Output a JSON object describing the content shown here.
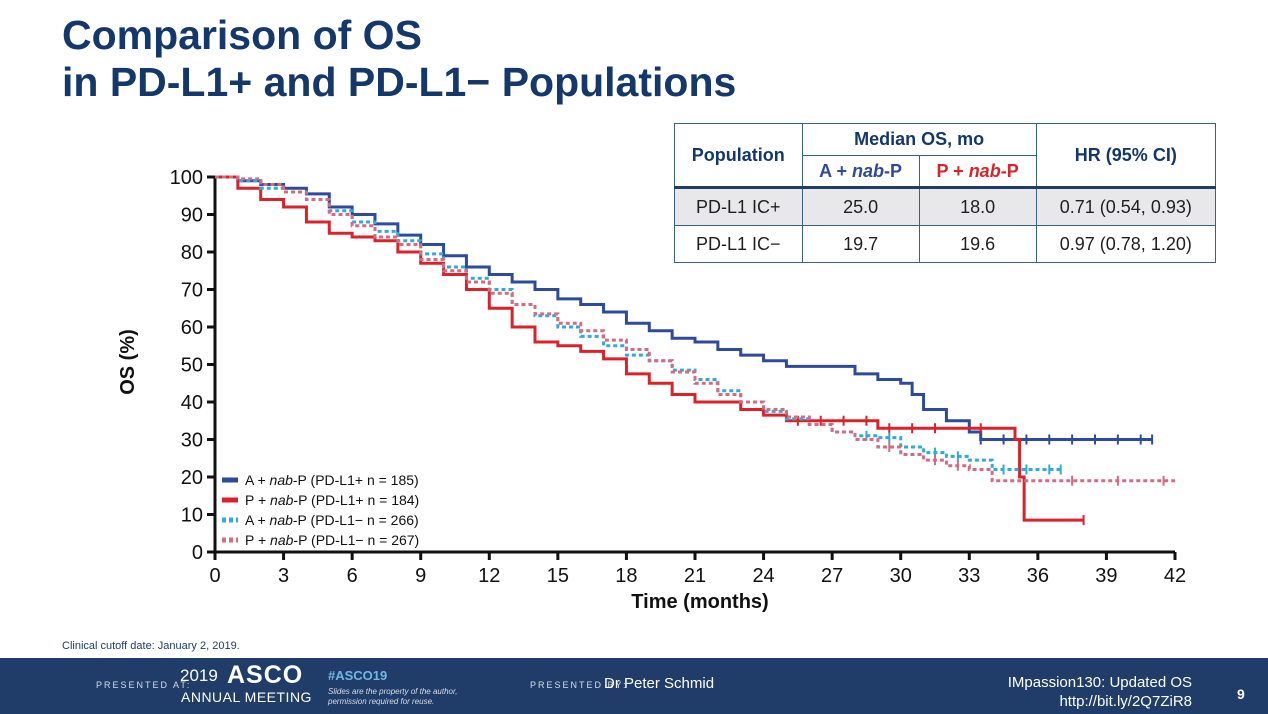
{
  "slide": {
    "title_line1": "Comparison of OS",
    "title_line2": "in PD-L1+ and PD-L1− Populations",
    "cutoff_note": "Clinical cutoff date: January 2, 2019."
  },
  "table": {
    "population_header": "Population",
    "median_header": "Median OS, mo",
    "col_a": "A + nab-P",
    "col_p": "P + nab-P",
    "hr_header": "HR (95% CI)",
    "rows": [
      {
        "population": "PD-L1 IC+",
        "median_a": "25.0",
        "median_p": "18.0",
        "hr": "0.71 (0.54, 0.93)"
      },
      {
        "population": "PD-L1 IC−",
        "median_a": "19.7",
        "median_p": "19.6",
        "hr": "0.97 (0.78, 1.20)"
      }
    ]
  },
  "footer": {
    "presented_at": "PRESENTED AT:",
    "meeting_year": "2019",
    "meeting_name": "ASCO",
    "meeting_sub": "ANNUAL MEETING",
    "hashtag": "#ASCO19",
    "rights_note": "Slides are the property of the author, permission required for reuse.",
    "presented_by": "PRESENTED BY:",
    "presenter": "Dr Peter Schmid",
    "study": "IMpassion130: Updated OS",
    "url": "http://bit.ly/2Q7ZiR8",
    "page_number": "9"
  },
  "chart_data": {
    "type": "line",
    "subtype": "kaplan-meier",
    "title": "",
    "xlabel": "Time (months)",
    "ylabel": "OS (%)",
    "xlim": [
      0,
      42
    ],
    "ylim": [
      0,
      100
    ],
    "xticks": [
      0,
      3,
      6,
      9,
      12,
      15,
      18,
      21,
      24,
      27,
      30,
      33,
      36,
      39,
      42
    ],
    "yticks": [
      0,
      10,
      20,
      30,
      40,
      50,
      60,
      70,
      80,
      90,
      100
    ],
    "legend_position": "bottom-left",
    "series": [
      {
        "name": "A + nab-P (PD-L1+ n = 185)",
        "color": "#2e4a9a",
        "dashed": false,
        "points": [
          [
            0,
            100
          ],
          [
            1,
            99
          ],
          [
            2,
            98
          ],
          [
            3,
            97
          ],
          [
            4,
            95.5
          ],
          [
            5,
            92
          ],
          [
            6,
            90
          ],
          [
            7,
            87.5
          ],
          [
            8,
            84.5
          ],
          [
            9,
            82
          ],
          [
            10,
            79
          ],
          [
            11,
            76
          ],
          [
            12,
            74
          ],
          [
            13,
            72
          ],
          [
            14,
            70
          ],
          [
            15,
            67.5
          ],
          [
            16,
            66
          ],
          [
            17,
            64
          ],
          [
            18,
            61
          ],
          [
            19,
            59
          ],
          [
            20,
            57
          ],
          [
            21,
            56
          ],
          [
            22,
            54
          ],
          [
            23,
            52.5
          ],
          [
            24,
            51
          ],
          [
            25,
            49.5
          ],
          [
            26,
            49.5
          ],
          [
            27,
            49.5
          ],
          [
            28,
            47.5
          ],
          [
            29,
            46
          ],
          [
            30,
            45
          ],
          [
            30.5,
            42
          ],
          [
            31,
            38
          ],
          [
            32,
            35
          ],
          [
            33,
            32
          ],
          [
            33.5,
            30
          ],
          [
            35,
            30
          ],
          [
            37,
            30
          ],
          [
            39,
            30
          ],
          [
            41,
            30
          ]
        ],
        "censor_times": [
          33.5,
          34.5,
          35.5,
          36.5,
          37.5,
          38.5,
          39.5,
          40.5,
          41
        ]
      },
      {
        "name": "P + nab-P (PD-L1+ n = 184)",
        "color": "#d9222a",
        "dashed": false,
        "points": [
          [
            0,
            100
          ],
          [
            1,
            97
          ],
          [
            2,
            94
          ],
          [
            3,
            92
          ],
          [
            4,
            88
          ],
          [
            5,
            85
          ],
          [
            6,
            84
          ],
          [
            7,
            83
          ],
          [
            8,
            80
          ],
          [
            9,
            77
          ],
          [
            10,
            74
          ],
          [
            11,
            70
          ],
          [
            12,
            65
          ],
          [
            13,
            60
          ],
          [
            14,
            56
          ],
          [
            15,
            55
          ],
          [
            16,
            53.5
          ],
          [
            17,
            51.5
          ],
          [
            18,
            47.5
          ],
          [
            19,
            45
          ],
          [
            20,
            42
          ],
          [
            21,
            40
          ],
          [
            22,
            40
          ],
          [
            23,
            38
          ],
          [
            24,
            36.5
          ],
          [
            25,
            35
          ],
          [
            26,
            35
          ],
          [
            27,
            35
          ],
          [
            28,
            35
          ],
          [
            29,
            33
          ],
          [
            30,
            33
          ],
          [
            31,
            33
          ],
          [
            32,
            33
          ],
          [
            33,
            33
          ],
          [
            34,
            33
          ],
          [
            35,
            30
          ],
          [
            35.2,
            20
          ],
          [
            35.4,
            8.5
          ],
          [
            38,
            8.5
          ]
        ],
        "censor_times": [
          25.5,
          26.5,
          27.5,
          28.5,
          29.5,
          30.5,
          31.5,
          33.5,
          38
        ]
      },
      {
        "name": "A + nab-P (PD-L1− n = 266)",
        "color": "#31a9db",
        "dashed": true,
        "points": [
          [
            0,
            100
          ],
          [
            1,
            99
          ],
          [
            2,
            97
          ],
          [
            3,
            96
          ],
          [
            4,
            94
          ],
          [
            5,
            91
          ],
          [
            6,
            88
          ],
          [
            7,
            85.5
          ],
          [
            8,
            83
          ],
          [
            9,
            79.5
          ],
          [
            10,
            76
          ],
          [
            11,
            73
          ],
          [
            12,
            70
          ],
          [
            13,
            66
          ],
          [
            14,
            63
          ],
          [
            15,
            60
          ],
          [
            16,
            57.5
          ],
          [
            17,
            55
          ],
          [
            18,
            52.5
          ],
          [
            19,
            51
          ],
          [
            20,
            48.5
          ],
          [
            21,
            46
          ],
          [
            22,
            43
          ],
          [
            23,
            40
          ],
          [
            24,
            37.5
          ],
          [
            25,
            35.5
          ],
          [
            26,
            34
          ],
          [
            27,
            32
          ],
          [
            28,
            31
          ],
          [
            29,
            30.5
          ],
          [
            30,
            28
          ],
          [
            31,
            26.5
          ],
          [
            32,
            25.5
          ],
          [
            33,
            24.5
          ],
          [
            34,
            22
          ],
          [
            35,
            22
          ],
          [
            36,
            22
          ],
          [
            37,
            22
          ]
        ],
        "censor_times": [
          28.5,
          29.5,
          31.5,
          32.5,
          34.5,
          35.5,
          36.5,
          37
        ]
      },
      {
        "name": "P + nab-P (PD-L1− n = 267)",
        "color": "#d36b82",
        "dashed": true,
        "points": [
          [
            0,
            100
          ],
          [
            1,
            99.5
          ],
          [
            2,
            98
          ],
          [
            3,
            96
          ],
          [
            4,
            94
          ],
          [
            5,
            90
          ],
          [
            6,
            87
          ],
          [
            7,
            84
          ],
          [
            8,
            82
          ],
          [
            9,
            78
          ],
          [
            10,
            75
          ],
          [
            11,
            72
          ],
          [
            12,
            69
          ],
          [
            13,
            66
          ],
          [
            14,
            63.5
          ],
          [
            15,
            61
          ],
          [
            16,
            59
          ],
          [
            17,
            56.5
          ],
          [
            18,
            54
          ],
          [
            19,
            51
          ],
          [
            20,
            48
          ],
          [
            21,
            45
          ],
          [
            22,
            42
          ],
          [
            23,
            40
          ],
          [
            24,
            38
          ],
          [
            25,
            36
          ],
          [
            26,
            34
          ],
          [
            27,
            32
          ],
          [
            28,
            30
          ],
          [
            29,
            28
          ],
          [
            30,
            26
          ],
          [
            31,
            24.5
          ],
          [
            32,
            23
          ],
          [
            33,
            22
          ],
          [
            34,
            19
          ],
          [
            36,
            19
          ],
          [
            38,
            19
          ],
          [
            40,
            19
          ],
          [
            42,
            19
          ]
        ],
        "censor_times": [
          29.5,
          31.5,
          32.5,
          37.5,
          39.5,
          41.5
        ]
      }
    ]
  }
}
